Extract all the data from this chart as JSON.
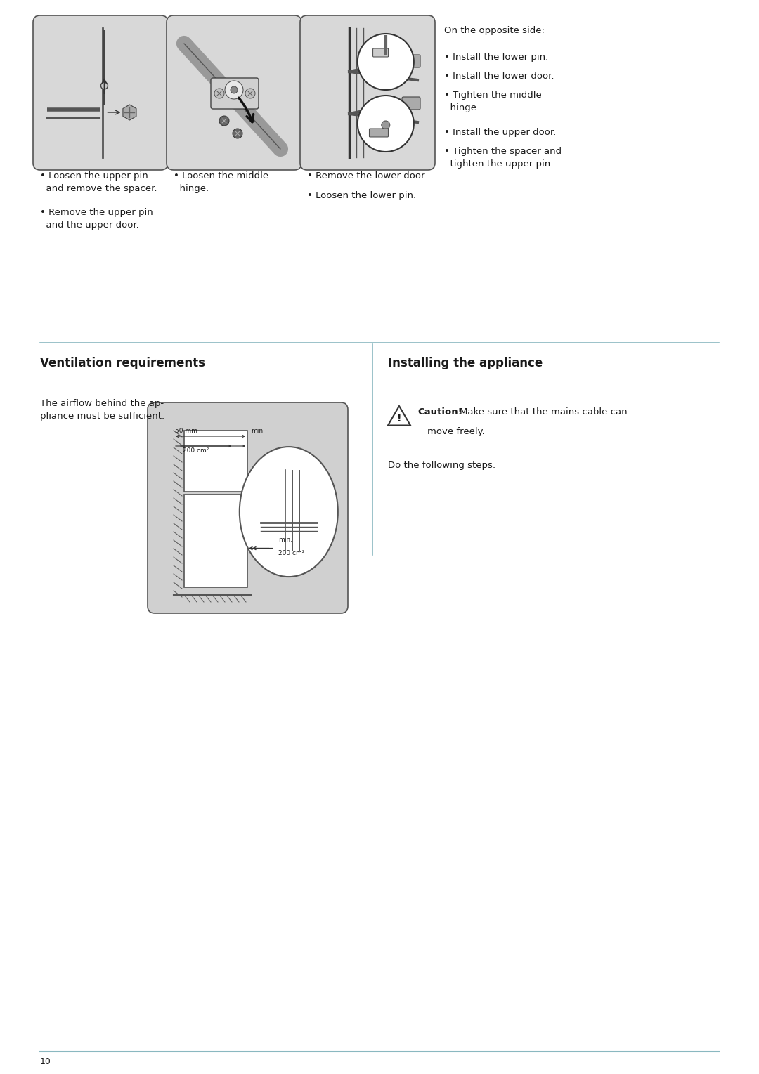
{
  "bg_color": "#ffffff",
  "page_number": "10",
  "footer_line_color": "#8ab8c0",
  "divider_line_color": "#8ab8c0",
  "col1_bullets": [
    "• Loosen the upper pin\n  and remove the spacer.",
    "• Remove the upper pin\n  and the upper door."
  ],
  "col2_bullets": [
    "• Loosen the middle\n  hinge."
  ],
  "col3_bullets": [
    "• Remove the lower door.",
    "• Loosen the lower pin."
  ],
  "col4_lines": [
    "On the opposite side:",
    "• Install the lower pin.",
    "• Install the lower door.",
    "• Tighten the middle\n  hinge.",
    "• Install the upper door.",
    "• Tighten the spacer and\n  tighten the upper pin."
  ],
  "vent_title": "Ventilation requirements",
  "vent_body": "The airflow behind the ap-\npliance must be sufficient.",
  "install_title": "Installing the appliance",
  "caution_bold": "Caution!",
  "caution_rest": "  Make sure that the mains cable can\n      move freely.",
  "install_body": "Do the following steps:",
  "font_body": 9.5,
  "font_title": 12.0,
  "font_page": 9.0,
  "text_color": "#1a1a1a"
}
